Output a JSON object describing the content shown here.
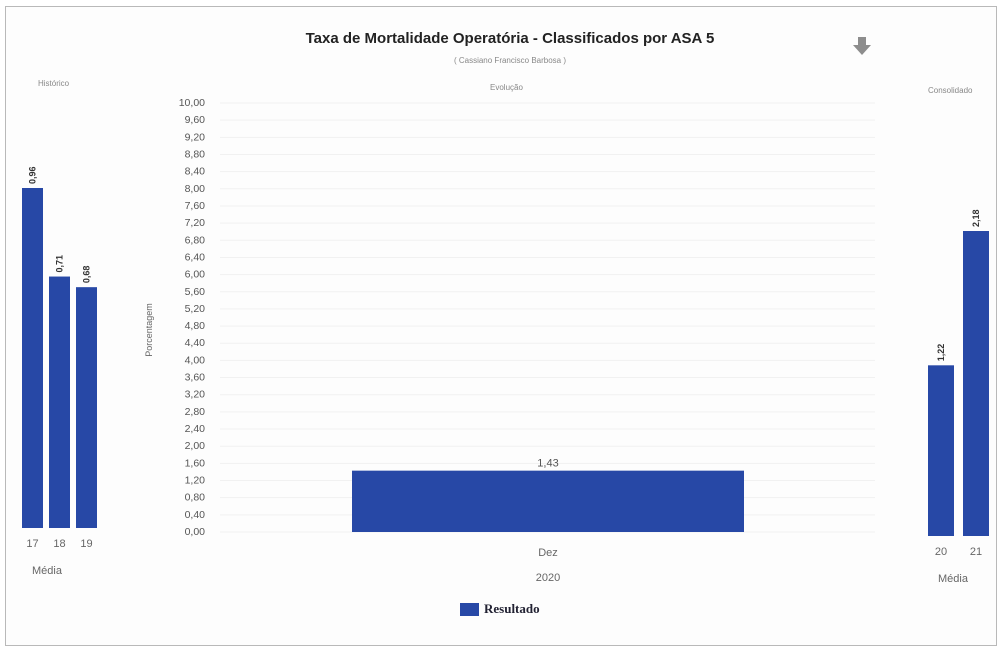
{
  "title": "Taxa de Mortalidade Operatória - Classificados por ASA 5",
  "subtitle": "( Cassiano Francisco Barbosa )",
  "icons": {
    "download": "arrow-down-icon"
  },
  "colors": {
    "bar": "#2748a6",
    "bar_dark": "#1d3a8f"
  },
  "legend": {
    "label": "Resultado"
  },
  "chart_data": [
    {
      "type": "bar",
      "panel_title": "Histórico",
      "categories": [
        "17",
        "18",
        "19"
      ],
      "values": [
        0.96,
        0.71,
        0.68
      ],
      "data_labels": [
        "0,96",
        "0,71",
        "0,68"
      ],
      "xlabel": "Média"
    },
    {
      "type": "bar",
      "panel_title": "Evolução",
      "categories": [
        "Dez"
      ],
      "values": [
        1.43
      ],
      "data_labels": [
        "1,43"
      ],
      "xlabel": "2020",
      "ylabel": "Porcentagem",
      "ylim": [
        0,
        10
      ],
      "yticks": [
        "0,00",
        "0,40",
        "0,80",
        "1,20",
        "1,60",
        "2,00",
        "2,40",
        "2,80",
        "3,20",
        "3,60",
        "4,00",
        "4,40",
        "4,80",
        "5,20",
        "5,60",
        "6,00",
        "6,40",
        "6,80",
        "7,20",
        "7,60",
        "8,00",
        "8,40",
        "8,80",
        "9,20",
        "9,60",
        "10,00"
      ],
      "series": [
        {
          "name": "Resultado",
          "values": [
            1.43
          ]
        }
      ],
      "grid": true,
      "legend": "bottom-center"
    },
    {
      "type": "bar",
      "panel_title": "Consolidado",
      "categories": [
        "20",
        "21"
      ],
      "values": [
        1.22,
        2.18
      ],
      "data_labels": [
        "1,22",
        "2,18"
      ],
      "xlabel": "Média"
    }
  ]
}
